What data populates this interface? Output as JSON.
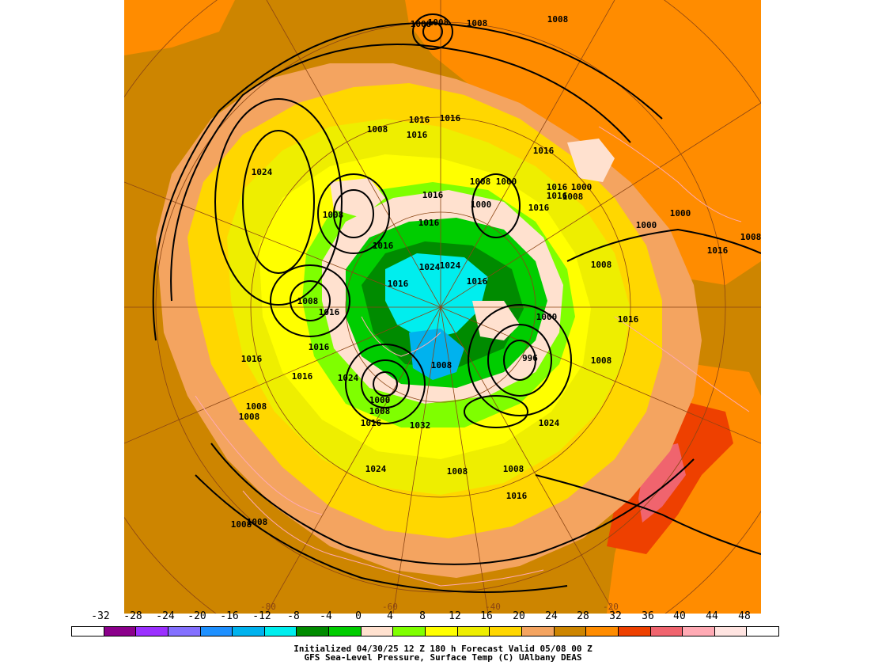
{
  "colorbar": {
    "ticks": [
      "-32",
      "-28",
      "-24",
      "-20",
      "-16",
      "-12",
      "-8",
      "-4",
      "0",
      "4",
      "8",
      "12",
      "16",
      "20",
      "24",
      "28",
      "32",
      "36",
      "40",
      "44",
      "48"
    ],
    "colors": [
      "#ffffff",
      "#8b008b",
      "#9b30ff",
      "#8470ff",
      "#1e90ff",
      "#00b2ee",
      "#00eeee",
      "#008b00",
      "#00cd00",
      "#ffe1cf",
      "#7fff00",
      "#ffff00",
      "#eeee00",
      "#ffd700",
      "#f4a460",
      "#cd8500",
      "#ff8c00",
      "#ee4000",
      "#f0646e",
      "#ffaab4",
      "#ffe4e1",
      "#ffffff"
    ]
  },
  "caption": {
    "line1": "Initialized 04/30/25 12 Z  180 h Forecast Valid 05/08 00 Z",
    "line2": "GFS Sea-Level Pressure, Surface Temp (C)    UAlbany DEAS"
  },
  "map": {
    "longitude_labels": [
      "-80",
      "-60",
      "-40",
      "-20"
    ],
    "isobar_labels": [
      "1008",
      "1008",
      "1008",
      "1016",
      "1016",
      "1008",
      "1008",
      "1016",
      "1024",
      "1016",
      "1016",
      "1008",
      "1000",
      "1000",
      "1016",
      "1016",
      "1000",
      "1008",
      "1016",
      "1016",
      "1008",
      "1016",
      "1000",
      "1000",
      "1008",
      "1016",
      "1008",
      "1024",
      "1024",
      "1016",
      "1000",
      "1016",
      "1016",
      "1008",
      "1016",
      "1016",
      "996",
      "1008",
      "1016",
      "1024",
      "1016",
      "1008",
      "1008",
      "1008",
      "1016",
      "1000",
      "1032",
      "1024",
      "1024",
      "1008",
      "1008",
      "1016",
      "1008",
      "1008",
      "1008"
    ],
    "colors": {
      "land_background": "#cd8500",
      "coastline": "#ffaab4",
      "contour": "#000000",
      "grid": "#8b4513"
    }
  }
}
